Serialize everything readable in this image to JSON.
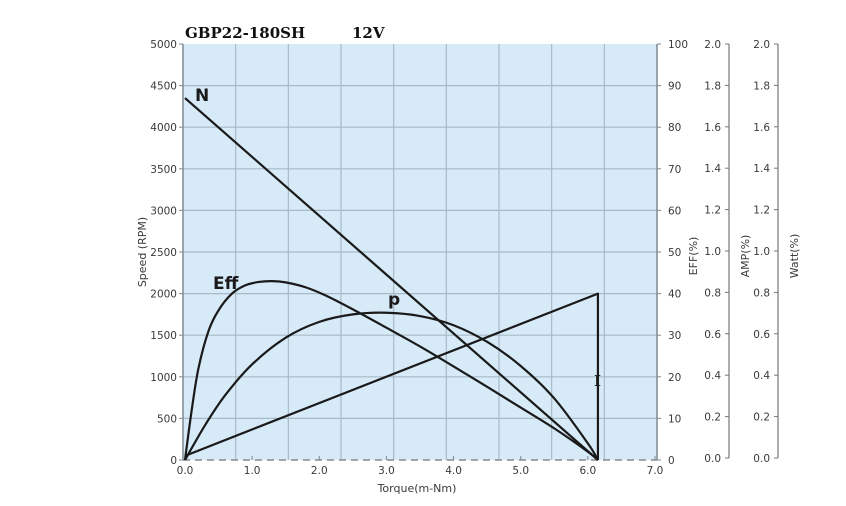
{
  "chart_data": {
    "type": "line",
    "title": "GBP22-180SH",
    "subtitle": "12V",
    "xlabel": "Torque(m-Nm)",
    "ylabel": "Speed (RPM)",
    "xlim": [
      0,
      7.0
    ],
    "ylim": [
      0,
      5000
    ],
    "x_ticks": [
      "0.0",
      "1.0",
      "2.0",
      "3.0",
      "4.0",
      "5.0",
      "6.0",
      "7.0"
    ],
    "y_ticks": [
      "0",
      "500",
      "1000",
      "1500",
      "2000",
      "2500",
      "3000",
      "3500",
      "4000",
      "4500",
      "5000"
    ],
    "right_axes": [
      {
        "label": "EFF(%)",
        "ticks": [
          "0",
          "10",
          "20",
          "30",
          "40",
          "50",
          "60",
          "70",
          "80",
          "90",
          "100"
        ],
        "range": [
          0,
          100
        ]
      },
      {
        "label": "AMP(%)",
        "ticks": [
          "0.0",
          "0.2",
          "0.4",
          "0.6",
          "0.8",
          "1.0",
          "1.2",
          "1.4",
          "1.6",
          "1.8",
          "2.0"
        ],
        "range": [
          0,
          2.0
        ]
      },
      {
        "label": "Watt(%)",
        "ticks": [
          "0.0",
          "0.2",
          "0.4",
          "0.6",
          "0.8",
          "1.0",
          "1.2",
          "1.4",
          "1.6",
          "1.8",
          "2.0"
        ],
        "range": [
          0,
          2.0
        ]
      }
    ],
    "grid": true,
    "background_color": "#d6eaf8",
    "line_color": "#1a1a1a",
    "series": [
      {
        "name": "N",
        "axis": "Speed (RPM)",
        "x": [
          0,
          6.15
        ],
        "values": [
          4350,
          0
        ]
      },
      {
        "name": "I",
        "axis": "AMP(%)",
        "x": [
          0,
          6.15,
          6.15
        ],
        "values": [
          0.02,
          0.8,
          0.0
        ]
      },
      {
        "name": "Eff",
        "axis": "EFF(%)",
        "x": [
          0,
          0.1,
          0.2,
          0.35,
          0.5,
          0.7,
          0.9,
          1.1,
          1.3,
          1.5,
          1.8,
          2.1,
          2.5,
          3.0,
          3.5,
          4.0,
          4.5,
          5.0,
          5.5,
          6.0,
          6.15
        ],
        "values": [
          0,
          12,
          22,
          31,
          36,
          40,
          42,
          42.8,
          43,
          42.7,
          41.5,
          39.5,
          36.2,
          31.8,
          27.3,
          22.5,
          17.6,
          12.6,
          7.6,
          2.0,
          0
        ]
      },
      {
        "name": "p",
        "axis": "Speed-scale (RPM equiv.)",
        "x": [
          0,
          0.3,
          0.6,
          1.0,
          1.5,
          2.0,
          2.5,
          3.0,
          3.5,
          4.0,
          4.5,
          5.0,
          5.5,
          6.0,
          6.15
        ],
        "values": [
          0,
          420,
          780,
          1150,
          1470,
          1660,
          1750,
          1770,
          1730,
          1620,
          1420,
          1130,
          740,
          200,
          0
        ]
      }
    ],
    "annotations": [
      "N",
      "Eff",
      "p",
      "I"
    ]
  },
  "header": {
    "model": "GBP22-180SH",
    "voltage": "12V"
  }
}
